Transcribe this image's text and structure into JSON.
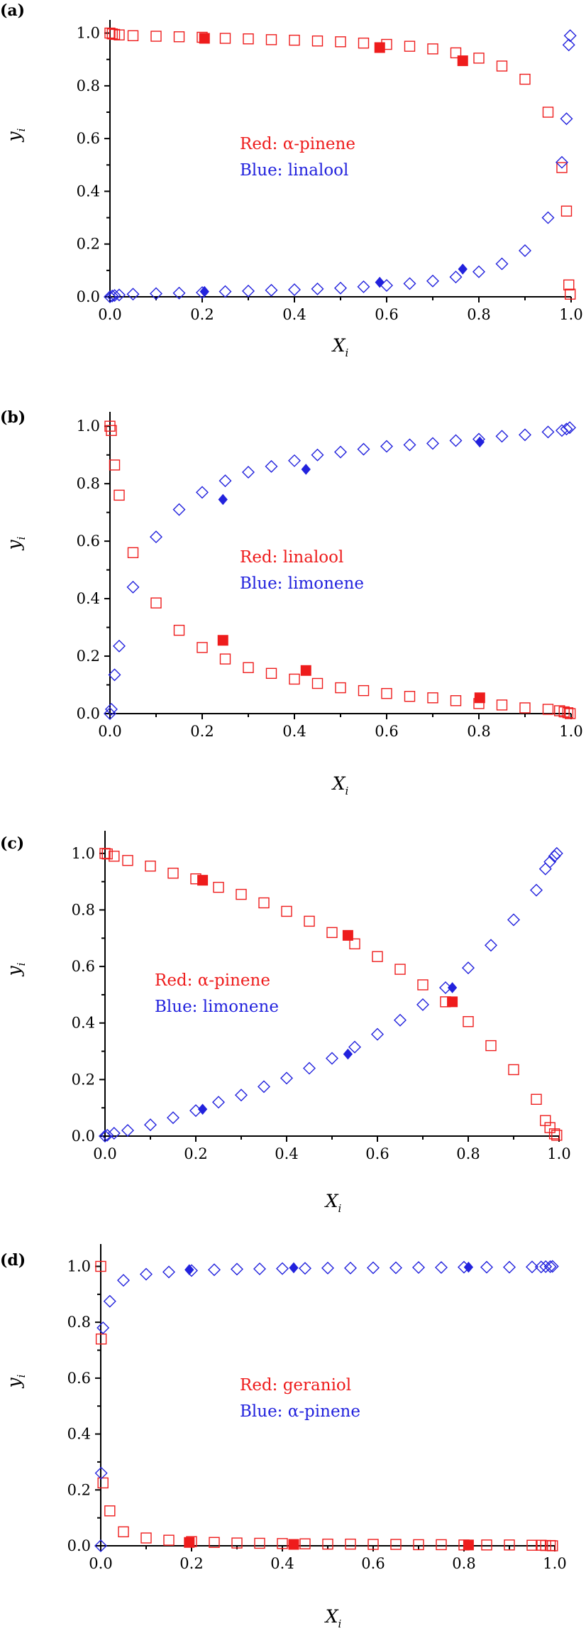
{
  "colors": {
    "red": "#ee1c1c",
    "blue": "#2222dd",
    "axis": "#000000"
  },
  "chart_data": [
    {
      "type": "scatter",
      "panel_label": "(a)",
      "xlabel": "X",
      "xlabel_sub": "i",
      "ylabel": "y",
      "ylabel_sub": "i",
      "xlim": [
        0,
        1
      ],
      "ylim": [
        0,
        1.05
      ],
      "x_ticks": [
        "0.0",
        "0.2",
        "0.4",
        "0.6",
        "0.8",
        "1.0"
      ],
      "y_ticks": [
        "0.0",
        "0.2",
        "0.4",
        "0.6",
        "0.8",
        "1.0"
      ],
      "grid": false,
      "legend": [
        {
          "text": "Red: α-pinene",
          "color": "red"
        },
        {
          "text": "Blue: linalool",
          "color": "blue"
        }
      ],
      "series": [
        {
          "name": "Red: α-pinene",
          "color": "red",
          "marker": "square-open",
          "x": [
            0.0,
            0.005,
            0.01,
            0.02,
            0.05,
            0.1,
            0.15,
            0.2,
            0.25,
            0.3,
            0.35,
            0.4,
            0.45,
            0.5,
            0.55,
            0.6,
            0.65,
            0.7,
            0.75,
            0.8,
            0.85,
            0.9,
            0.95,
            0.98,
            0.99,
            0.995,
            0.998
          ],
          "y": [
            1.0,
            0.997,
            0.995,
            0.993,
            0.99,
            0.988,
            0.986,
            0.984,
            0.98,
            0.978,
            0.975,
            0.973,
            0.97,
            0.967,
            0.962,
            0.957,
            0.95,
            0.94,
            0.925,
            0.905,
            0.875,
            0.825,
            0.7,
            0.49,
            0.325,
            0.045,
            0.01
          ]
        },
        {
          "name": "Red: α-pinene",
          "color": "red",
          "marker": "square-filled",
          "x": [
            0.205,
            0.585,
            0.765
          ],
          "y": [
            0.98,
            0.945,
            0.895
          ]
        },
        {
          "name": "Blue: linalool",
          "color": "blue",
          "marker": "diamond-open",
          "x": [
            0.0,
            0.005,
            0.01,
            0.02,
            0.05,
            0.1,
            0.15,
            0.2,
            0.25,
            0.3,
            0.35,
            0.4,
            0.45,
            0.5,
            0.55,
            0.6,
            0.65,
            0.7,
            0.75,
            0.8,
            0.85,
            0.9,
            0.95,
            0.98,
            0.99,
            0.995,
            0.998
          ],
          "y": [
            0.0,
            0.003,
            0.005,
            0.007,
            0.01,
            0.012,
            0.014,
            0.016,
            0.02,
            0.022,
            0.025,
            0.027,
            0.03,
            0.033,
            0.038,
            0.043,
            0.05,
            0.06,
            0.075,
            0.095,
            0.125,
            0.175,
            0.3,
            0.51,
            0.675,
            0.955,
            0.99
          ]
        },
        {
          "name": "Blue: linalool",
          "color": "blue",
          "marker": "diamond-filled",
          "x": [
            0.205,
            0.585,
            0.765
          ],
          "y": [
            0.02,
            0.055,
            0.105
          ]
        }
      ]
    },
    {
      "type": "scatter",
      "panel_label": "(b)",
      "xlabel": "X",
      "xlabel_sub": "i",
      "ylabel": "y",
      "ylabel_sub": "i",
      "xlim": [
        0,
        1
      ],
      "ylim": [
        0,
        1.05
      ],
      "x_ticks": [
        "0.0",
        "0.2",
        "0.4",
        "0.6",
        "0.8",
        "1.0"
      ],
      "y_ticks": [
        "0.0",
        "0.2",
        "0.4",
        "0.6",
        "0.8",
        "1.0"
      ],
      "grid": false,
      "legend": [
        {
          "text": "Red: linalool",
          "color": "red"
        },
        {
          "text": "Blue: limonene",
          "color": "blue"
        }
      ],
      "series": [
        {
          "name": "Red: linalool",
          "color": "red",
          "marker": "square-open",
          "x": [
            0.0,
            0.003,
            0.01,
            0.02,
            0.05,
            0.1,
            0.15,
            0.2,
            0.25,
            0.3,
            0.35,
            0.4,
            0.45,
            0.5,
            0.55,
            0.6,
            0.65,
            0.7,
            0.75,
            0.8,
            0.85,
            0.9,
            0.95,
            0.975,
            0.985,
            0.993,
            0.998
          ],
          "y": [
            1.0,
            0.985,
            0.865,
            0.76,
            0.56,
            0.385,
            0.29,
            0.23,
            0.19,
            0.16,
            0.14,
            0.12,
            0.105,
            0.09,
            0.08,
            0.07,
            0.06,
            0.055,
            0.045,
            0.035,
            0.03,
            0.02,
            0.015,
            0.01,
            0.006,
            0.003,
            0.0
          ]
        },
        {
          "name": "Red: linalool",
          "color": "red",
          "marker": "square-filled",
          "x": [
            0.245,
            0.425,
            0.802
          ],
          "y": [
            0.255,
            0.15,
            0.055
          ]
        },
        {
          "name": "Blue: limonene",
          "color": "blue",
          "marker": "diamond-open",
          "x": [
            0.0,
            0.003,
            0.01,
            0.02,
            0.05,
            0.1,
            0.15,
            0.2,
            0.25,
            0.3,
            0.35,
            0.4,
            0.45,
            0.5,
            0.55,
            0.6,
            0.65,
            0.7,
            0.75,
            0.8,
            0.85,
            0.9,
            0.95,
            0.98,
            0.99,
            0.997
          ],
          "y": [
            0.0,
            0.015,
            0.135,
            0.235,
            0.44,
            0.615,
            0.71,
            0.77,
            0.81,
            0.84,
            0.86,
            0.88,
            0.9,
            0.91,
            0.92,
            0.93,
            0.935,
            0.94,
            0.95,
            0.955,
            0.965,
            0.97,
            0.98,
            0.985,
            0.99,
            0.995
          ]
        },
        {
          "name": "Blue: limonene",
          "color": "blue",
          "marker": "diamond-filled",
          "x": [
            0.245,
            0.425,
            0.802
          ],
          "y": [
            0.745,
            0.85,
            0.945
          ]
        }
      ]
    },
    {
      "type": "scatter",
      "panel_label": "(c)",
      "xlabel": "X",
      "xlabel_sub": "i",
      "ylabel": "y",
      "ylabel_sub": "i",
      "xlim": [
        0,
        1
      ],
      "ylim": [
        0,
        1.08
      ],
      "x_ticks": [
        "0.0",
        "0.2",
        "0.4",
        "0.6",
        "0.8",
        "1.0"
      ],
      "y_ticks": [
        "0.0",
        "0.2",
        "0.4",
        "0.6",
        "0.8",
        "1.0"
      ],
      "grid": false,
      "legend": [
        {
          "text": "Red: α-pinene",
          "color": "red"
        },
        {
          "text": "Blue: limonene",
          "color": "blue"
        }
      ],
      "series": [
        {
          "name": "Red: α-pinene",
          "color": "red",
          "marker": "square-open",
          "x": [
            0.0,
            0.005,
            0.02,
            0.05,
            0.1,
            0.15,
            0.2,
            0.25,
            0.3,
            0.35,
            0.4,
            0.45,
            0.5,
            0.55,
            0.6,
            0.65,
            0.7,
            0.75,
            0.8,
            0.85,
            0.9,
            0.95,
            0.97,
            0.98,
            0.99,
            0.995
          ],
          "y": [
            1.0,
            0.998,
            0.99,
            0.975,
            0.955,
            0.93,
            0.91,
            0.88,
            0.855,
            0.825,
            0.795,
            0.76,
            0.72,
            0.68,
            0.635,
            0.59,
            0.535,
            0.475,
            0.405,
            0.32,
            0.235,
            0.13,
            0.055,
            0.03,
            0.008,
            0.003
          ]
        },
        {
          "name": "Red: α-pinene",
          "color": "red",
          "marker": "square-filled",
          "x": [
            0.215,
            0.535,
            0.765
          ],
          "y": [
            0.905,
            0.71,
            0.475
          ]
        },
        {
          "name": "Blue: limonene",
          "color": "blue",
          "marker": "diamond-open",
          "x": [
            0.0,
            0.005,
            0.02,
            0.05,
            0.1,
            0.15,
            0.2,
            0.25,
            0.3,
            0.35,
            0.4,
            0.45,
            0.5,
            0.55,
            0.6,
            0.65,
            0.7,
            0.75,
            0.8,
            0.85,
            0.9,
            0.95,
            0.97,
            0.98,
            0.99,
            0.995
          ],
          "y": [
            0.0,
            0.003,
            0.01,
            0.02,
            0.04,
            0.065,
            0.09,
            0.12,
            0.145,
            0.175,
            0.205,
            0.24,
            0.275,
            0.315,
            0.36,
            0.41,
            0.465,
            0.525,
            0.595,
            0.675,
            0.765,
            0.87,
            0.945,
            0.97,
            0.99,
            1.0
          ]
        },
        {
          "name": "Blue: limonene",
          "color": "blue",
          "marker": "diamond-filled",
          "x": [
            0.215,
            0.535,
            0.765
          ],
          "y": [
            0.095,
            0.29,
            0.525
          ]
        }
      ]
    },
    {
      "type": "scatter",
      "panel_label": "(d)",
      "xlabel": "X",
      "xlabel_sub": "i",
      "ylabel": "y",
      "ylabel_sub": "i",
      "xlim": [
        0,
        1
      ],
      "ylim": [
        0,
        1.08
      ],
      "x_ticks": [
        "0.0",
        "0.2",
        "0.4",
        "0.6",
        "0.8",
        "1.0"
      ],
      "y_ticks": [
        "0.0",
        "0.2",
        "0.4",
        "0.6",
        "0.8",
        "1.0"
      ],
      "grid": false,
      "legend": [
        {
          "text": "Red: geraniol",
          "color": "red"
        },
        {
          "text": "Blue: α-pinene",
          "color": "blue"
        }
      ],
      "series": [
        {
          "name": "Red: geraniol",
          "color": "red",
          "marker": "square-open",
          "x": [
            0.0,
            0.001,
            0.005,
            0.02,
            0.05,
            0.1,
            0.15,
            0.2,
            0.25,
            0.3,
            0.35,
            0.4,
            0.45,
            0.5,
            0.55,
            0.6,
            0.65,
            0.7,
            0.75,
            0.8,
            0.85,
            0.9,
            0.95,
            0.97,
            0.98,
            0.99,
            0.995
          ],
          "y": [
            1.0,
            0.74,
            0.225,
            0.125,
            0.05,
            0.028,
            0.02,
            0.015,
            0.012,
            0.01,
            0.009,
            0.008,
            0.007,
            0.006,
            0.006,
            0.005,
            0.005,
            0.004,
            0.004,
            0.003,
            0.003,
            0.003,
            0.002,
            0.002,
            0.001,
            0.001,
            0.0
          ]
        },
        {
          "name": "Red: geraniol",
          "color": "red",
          "marker": "square-filled",
          "x": [
            0.195,
            0.425,
            0.81
          ],
          "y": [
            0.012,
            0.005,
            0.003
          ]
        },
        {
          "name": "Blue: α-pinene",
          "color": "blue",
          "marker": "diamond-open",
          "x": [
            0.0,
            0.001,
            0.005,
            0.02,
            0.05,
            0.1,
            0.15,
            0.2,
            0.25,
            0.3,
            0.35,
            0.4,
            0.45,
            0.5,
            0.55,
            0.6,
            0.65,
            0.7,
            0.75,
            0.8,
            0.85,
            0.9,
            0.95,
            0.97,
            0.98,
            0.99,
            0.995
          ],
          "y": [
            0.0,
            0.26,
            0.78,
            0.875,
            0.95,
            0.972,
            0.98,
            0.985,
            0.988,
            0.99,
            0.991,
            0.992,
            0.993,
            0.994,
            0.994,
            0.995,
            0.995,
            0.996,
            0.996,
            0.997,
            0.997,
            0.997,
            0.998,
            0.998,
            0.999,
            0.999,
            1.0
          ]
        },
        {
          "name": "Blue: α-pinene",
          "color": "blue",
          "marker": "diamond-filled",
          "x": [
            0.195,
            0.425,
            0.81
          ],
          "y": [
            0.988,
            0.995,
            0.997
          ]
        }
      ]
    }
  ]
}
